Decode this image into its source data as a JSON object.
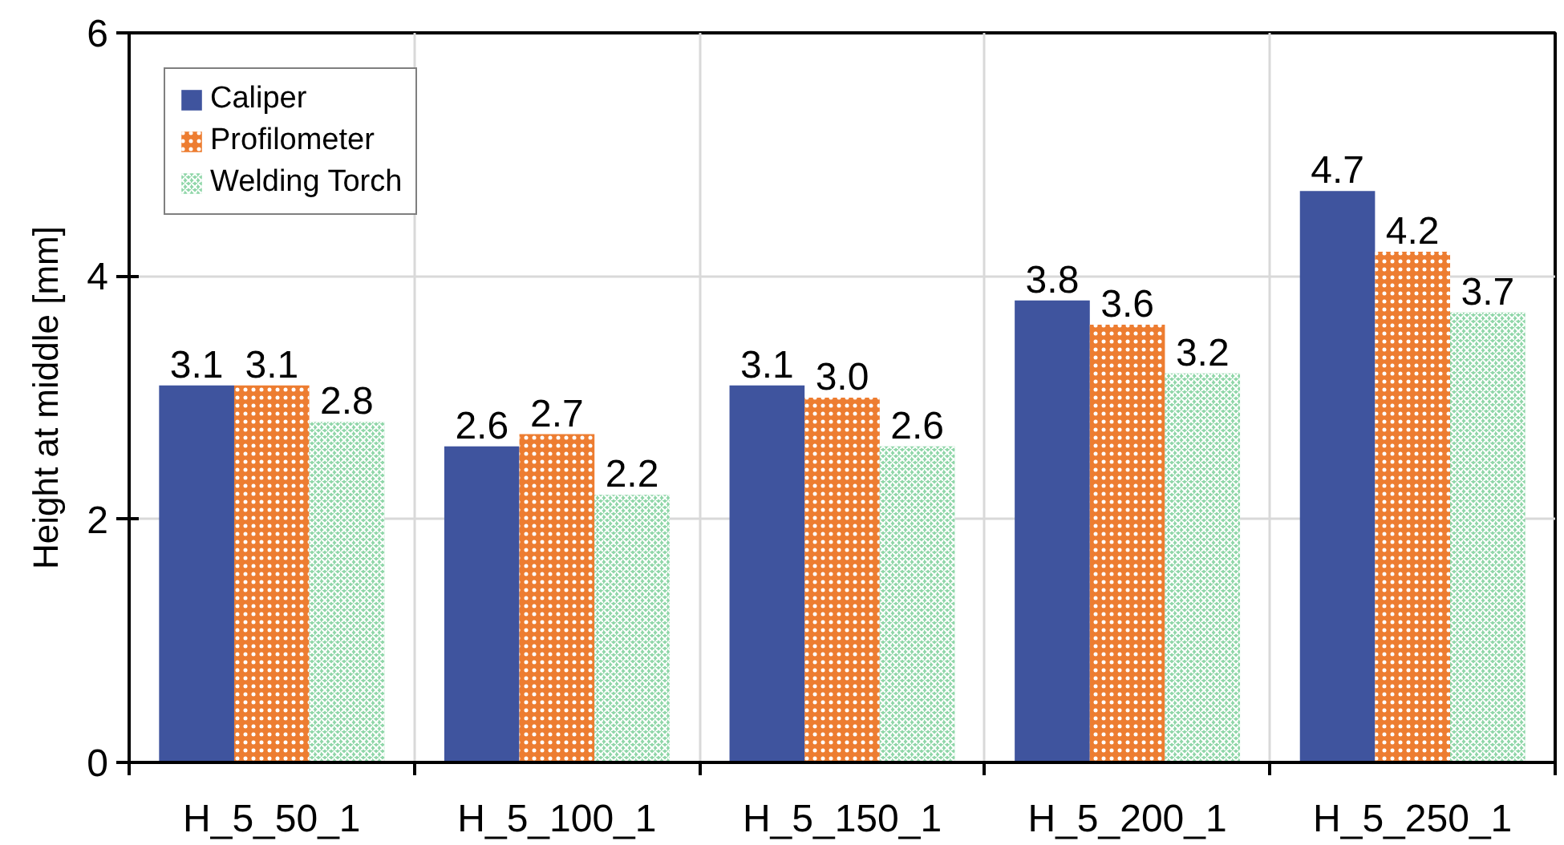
{
  "chart_data": {
    "type": "bar",
    "ylabel": "Height at middle [mm]",
    "categories": [
      "H_5_50_1",
      "H_5_100_1",
      "H_5_150_1",
      "H_5_200_1",
      "H_5_250_1"
    ],
    "series": [
      {
        "name": "Caliper",
        "color": "#3f549e",
        "values": [
          3.1,
          2.6,
          3.1,
          3.8,
          4.7
        ],
        "value_labels": [
          "3.1",
          "2.6",
          "3.1",
          "3.8",
          "4.7"
        ]
      },
      {
        "name": "Profilometer",
        "color": "#ed7d31",
        "values": [
          3.1,
          2.7,
          3.0,
          3.6,
          4.2
        ],
        "value_labels": [
          "3.1",
          "2.7",
          "3.0",
          "3.6",
          "4.2"
        ]
      },
      {
        "name": "Welding Torch",
        "color": "#8fd6a8",
        "values": [
          2.8,
          2.2,
          2.6,
          3.2,
          3.7
        ],
        "value_labels": [
          "2.8",
          "2.2",
          "2.6",
          "3.2",
          "3.7"
        ]
      }
    ],
    "ylim": [
      0,
      6
    ],
    "yticks": [
      0,
      2,
      4,
      6
    ],
    "grid": true,
    "legend": "top left"
  }
}
